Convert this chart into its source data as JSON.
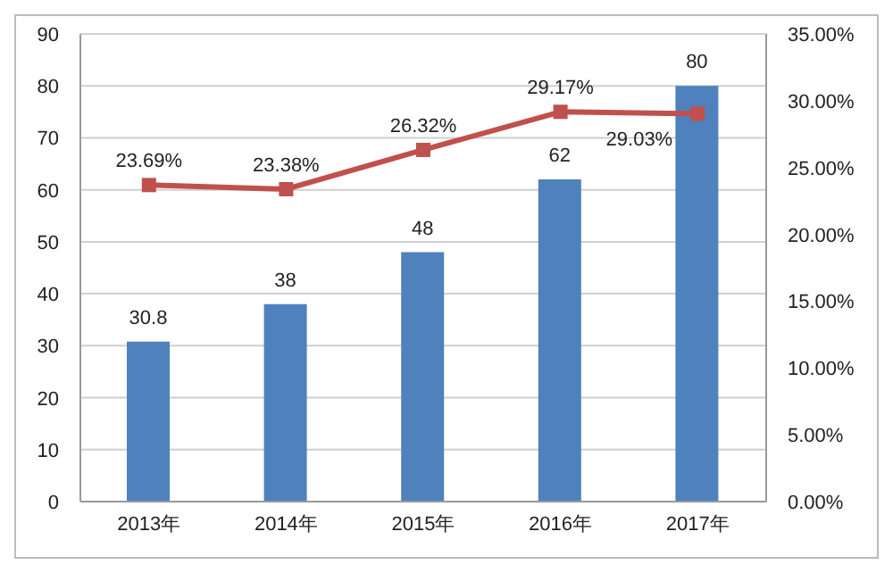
{
  "chart_data": {
    "type": "bar",
    "categories": [
      "2013年",
      "2014年",
      "2015年",
      "2016年",
      "2017年"
    ],
    "series": [
      {
        "color": "#4f81bd",
        "values": [
          30.8,
          38,
          48,
          62,
          80
        ]
      },
      {
        "type": "line",
        "axis": "y2",
        "color": "#c0504d",
        "values": [
          23.69,
          23.38,
          26.32,
          29.17,
          29.03
        ],
        "value_labels": [
          "23.69%",
          "23.38%",
          "26.32%",
          "29.17%",
          "29.03%"
        ]
      }
    ],
    "data_labels": true,
    "grid": "y",
    "legend": false,
    "marker": "square",
    "line_style": "solid",
    "ylim": [
      0,
      90
    ],
    "yticks": [
      0,
      10,
      20,
      30,
      40,
      50,
      60,
      70,
      80,
      90
    ],
    "y2lim": [
      0,
      35
    ],
    "y2ticks": [
      {
        "value": 0,
        "label": "0.00%"
      },
      {
        "value": 5,
        "label": "5.00%"
      },
      {
        "value": 10,
        "label": "10.00%"
      },
      {
        "value": 15,
        "label": "15.00%"
      },
      {
        "value": 20,
        "label": "20.00%"
      },
      {
        "value": 25,
        "label": "25.00%"
      },
      {
        "value": 30,
        "label": "30.00%"
      },
      {
        "value": 35,
        "label": "35.00%"
      }
    ]
  }
}
